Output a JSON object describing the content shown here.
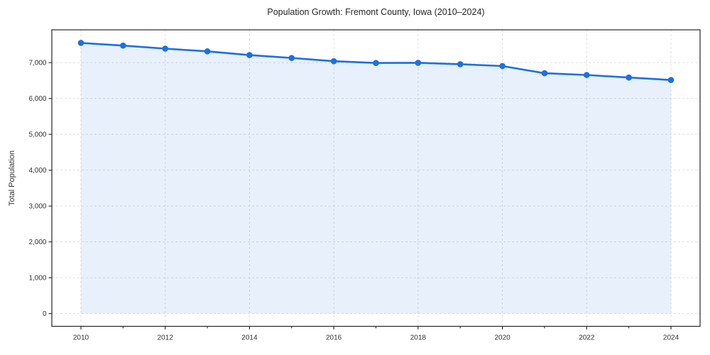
{
  "chart_data": {
    "type": "area",
    "title": "Population Growth: Fremont County, Iowa (2010–2024)",
    "xlabel": "",
    "ylabel": "Total Population",
    "x": [
      2010,
      2011,
      2012,
      2013,
      2014,
      2015,
      2016,
      2017,
      2018,
      2019,
      2020,
      2021,
      2022,
      2023,
      2024
    ],
    "series": [
      {
        "name": "Total Population",
        "values": [
          7550,
          7475,
          7390,
          7315,
          7210,
          7130,
          7040,
          6990,
          6995,
          6955,
          6905,
          6705,
          6655,
          6585,
          6515
        ]
      }
    ],
    "xlim": [
      2009.31,
      2024.69
    ],
    "ylim": [
      -355,
      7915
    ],
    "y_ticks": [
      0,
      1000,
      2000,
      3000,
      4000,
      5000,
      6000,
      7000
    ],
    "x_major_ticks": [
      2010,
      2012,
      2014,
      2016,
      2018,
      2020,
      2022,
      2024
    ],
    "x_minor_ticks": [
      2011,
      2013,
      2015,
      2017,
      2019,
      2021,
      2023
    ],
    "grid": {
      "style": "dashed",
      "horizontal": true,
      "vertical": true
    },
    "legend": "none",
    "marker": "circle",
    "fill_to_zero": true,
    "colors": {
      "line": "#1e6fe0",
      "marker": "#1e6fe0",
      "area_fill": "#e9effb",
      "grid": "#dcdcdc",
      "spine": "#262626",
      "text": "#333333",
      "background": "#ffffff"
    }
  }
}
